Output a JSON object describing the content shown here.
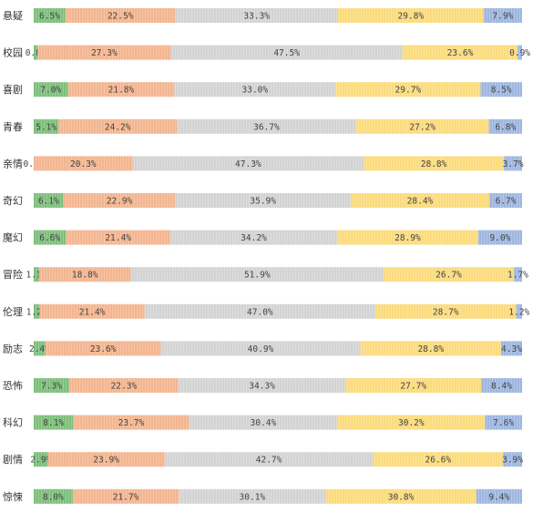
{
  "chart_data": {
    "type": "bar",
    "orientation": "horizontal",
    "stacked": "percent",
    "title": "",
    "xlabel": "",
    "ylabel": "",
    "legend": "none",
    "grid": false,
    "categories": [
      "悬疑",
      "校园",
      "喜剧",
      "青春",
      "亲情",
      "奇幻",
      "魔幻",
      "冒险",
      "伦理",
      "励志",
      "恐怖",
      "科幻",
      "剧情",
      "惊悚"
    ],
    "series": [
      {
        "color": "#7dbf7b",
        "values": [
          6.5,
          0.8,
          7.0,
          5.1,
          0.0,
          6.1,
          6.6,
          1.1,
          1.2,
          2.4,
          7.3,
          8.1,
          2.9,
          8.0
        ]
      },
      {
        "color": "#f3b58f",
        "values": [
          22.5,
          27.3,
          21.8,
          24.2,
          20.3,
          22.9,
          21.4,
          18.8,
          21.4,
          23.6,
          22.3,
          23.7,
          23.9,
          21.7
        ]
      },
      {
        "color": "#d3d3d3",
        "values": [
          33.3,
          47.5,
          33.0,
          36.7,
          47.3,
          35.9,
          34.2,
          51.9,
          47.0,
          40.9,
          34.3,
          30.4,
          42.7,
          30.1
        ]
      },
      {
        "color": "#fbdb7c",
        "values": [
          29.8,
          23.6,
          29.7,
          27.2,
          28.8,
          28.4,
          28.9,
          26.7,
          28.7,
          28.8,
          27.7,
          30.2,
          26.6,
          30.8
        ]
      },
      {
        "color": "#9eb7e0",
        "values": [
          7.9,
          0.9,
          8.5,
          6.8,
          3.7,
          6.7,
          9.0,
          1.7,
          1.2,
          4.3,
          8.4,
          7.6,
          3.9,
          9.4
        ]
      }
    ]
  }
}
